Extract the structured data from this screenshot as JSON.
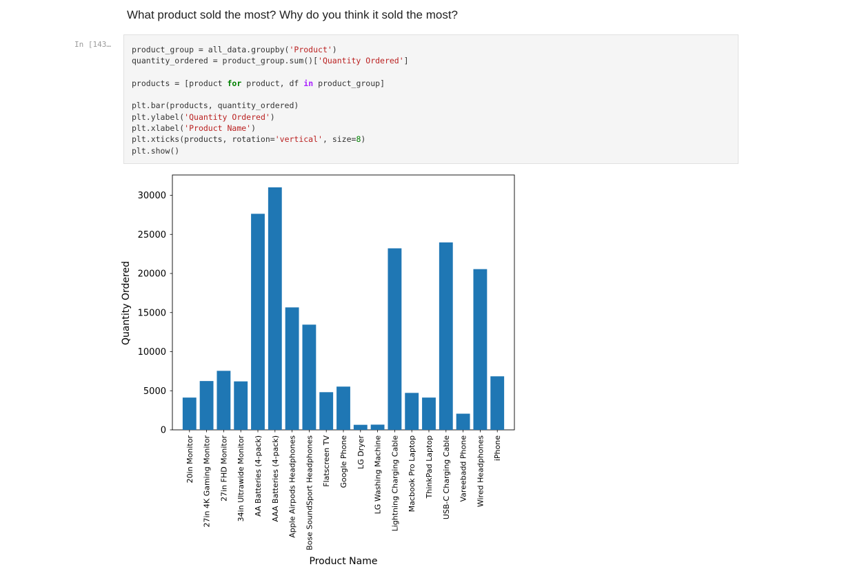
{
  "markdown": {
    "heading": "What product sold the most? Why do you think it sold the most?"
  },
  "cell": {
    "prompt": "In [143…",
    "code_lines": [
      [
        {
          "t": "product_group = all_data.groupby("
        },
        {
          "t": "'Product'",
          "c": "str"
        },
        {
          "t": ")"
        }
      ],
      [
        {
          "t": "quantity_ordered = product_group.sum()["
        },
        {
          "t": "'Quantity Ordered'",
          "c": "str"
        },
        {
          "t": "]"
        }
      ],
      [],
      [
        {
          "t": "products = [product "
        },
        {
          "t": "for",
          "c": "kw"
        },
        {
          "t": " product, df "
        },
        {
          "t": "in",
          "c": "op"
        },
        {
          "t": " product_group]"
        }
      ],
      [],
      [
        {
          "t": "plt.bar(products, quantity_ordered)"
        }
      ],
      [
        {
          "t": "plt.ylabel("
        },
        {
          "t": "'Quantity Ordered'",
          "c": "str"
        },
        {
          "t": ")"
        }
      ],
      [
        {
          "t": "plt.xlabel("
        },
        {
          "t": "'Product Name'",
          "c": "str"
        },
        {
          "t": ")"
        }
      ],
      [
        {
          "t": "plt.xticks(products, rotation="
        },
        {
          "t": "'vertical'",
          "c": "str"
        },
        {
          "t": ", size="
        },
        {
          "t": "8",
          "c": "num"
        },
        {
          "t": ")"
        }
      ],
      [
        {
          "t": "plt.show()"
        }
      ]
    ]
  },
  "chart_data": {
    "type": "bar",
    "xlabel": "Product Name",
    "ylabel": "Quantity Ordered",
    "ylim": [
      0,
      32600
    ],
    "yticks": [
      0,
      5000,
      10000,
      15000,
      20000,
      25000,
      30000
    ],
    "bar_color": "#1f77b4",
    "categories": [
      "20in Monitor",
      "27in 4K Gaming Monitor",
      "27in FHD Monitor",
      "34in Ultrawide Monitor",
      "AA Batteries (4-pack)",
      "AAA Batteries (4-pack)",
      "Apple Airpods Headphones",
      "Bose SoundSport Headphones",
      "Flatscreen TV",
      "Google Phone",
      "LG Dryer",
      "LG Washing Machine",
      "Lightning Charging Cable",
      "Macbook Pro Laptop",
      "ThinkPad Laptop",
      "USB-C Charging Cable",
      "Vareebadd Phone",
      "Wired Headphones",
      "iPhone"
    ],
    "values": [
      4129,
      6244,
      7550,
      6199,
      27635,
      31017,
      15661,
      13457,
      4819,
      5532,
      646,
      666,
      23217,
      4728,
      4130,
      23975,
      2068,
      20557,
      6849
    ]
  }
}
